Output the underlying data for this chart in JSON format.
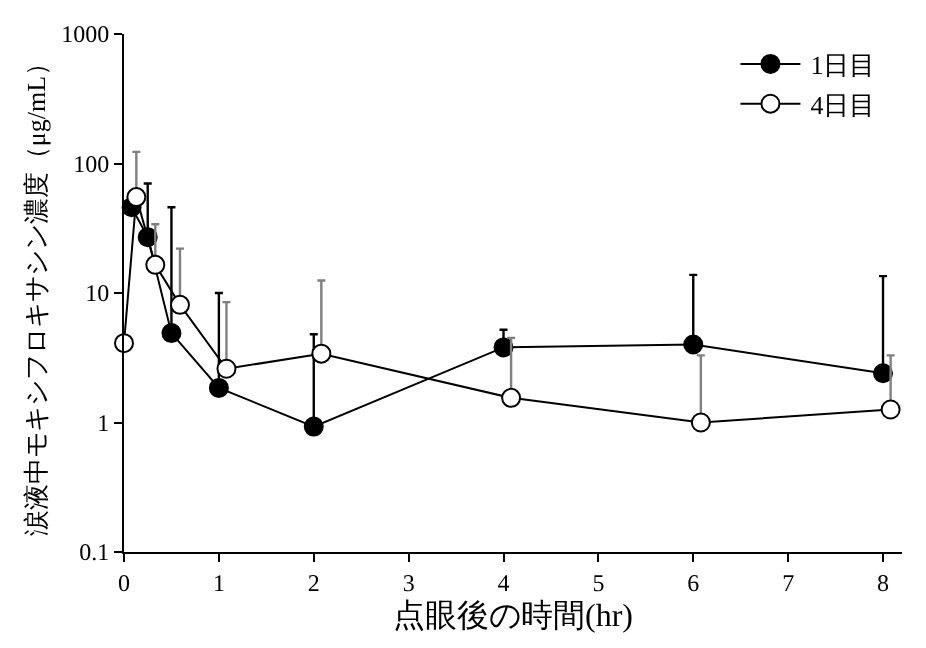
{
  "chart_data": {
    "type": "line",
    "xlabel": "点眼後の時間(hr)",
    "ylabel": "涙液中モキシフロキサシン濃度（μg/mL）",
    "log": "y",
    "xlim": [
      0,
      8.2
    ],
    "xticks": [
      0,
      1,
      2,
      3,
      4,
      5,
      6,
      7,
      8
    ],
    "ylim": [
      0.1,
      1000
    ],
    "yticks": [
      0.1,
      1,
      10,
      100,
      1000
    ],
    "legend": "top right",
    "marker": "circle",
    "line_style": "solid",
    "series": [
      {
        "name": "1日目",
        "color": "#000000",
        "x": [
          0.08,
          0.25,
          0.5,
          1,
          2,
          4,
          6,
          8
        ],
        "values": [
          46,
          27,
          4.9,
          1.85,
          0.93,
          3.8,
          4.0,
          2.4
        ],
        "errors": [
          null,
          [
            27,
            70
          ],
          [
            4.9,
            46
          ],
          [
            1.85,
            10
          ],
          [
            0.93,
            4.8
          ],
          [
            3.8,
            5.2
          ],
          [
            4.0,
            13.8
          ],
          [
            2.4,
            13.5
          ]
        ]
      },
      {
        "name": "4日目",
        "color": "#ffffff",
        "x": [
          0,
          0.13,
          0.33,
          0.59,
          1.08,
          2.08,
          4.08,
          6.08,
          8.08
        ],
        "values": [
          4.1,
          55,
          16.5,
          8.1,
          2.6,
          3.4,
          1.55,
          1.0,
          1.26
        ],
        "errors": [
          null,
          [
            55,
            123
          ],
          [
            16.5,
            34
          ],
          [
            8.1,
            22
          ],
          [
            2.6,
            8.5
          ],
          [
            3.4,
            12.5
          ],
          [
            1.55,
            4.5
          ],
          [
            1.0,
            3.3
          ],
          [
            1.26,
            3.3
          ]
        ]
      }
    ]
  }
}
